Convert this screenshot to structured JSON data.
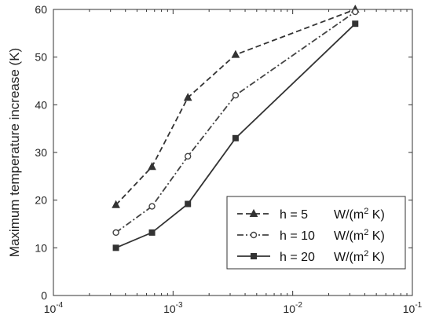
{
  "chart_data": {
    "type": "line",
    "title": "",
    "xlabel": "",
    "ylabel": "Maximum temperature increase (K)",
    "xscale": "log",
    "xlim": [
      0.0001,
      0.1
    ],
    "ylim": [
      0,
      60
    ],
    "grid": false,
    "legend_position": "bottom-right",
    "x_ticks": [
      {
        "value": 0.0001,
        "base": "10",
        "exp": "-4"
      },
      {
        "value": 0.001,
        "base": "10",
        "exp": "-3"
      },
      {
        "value": 0.01,
        "base": "10",
        "exp": "-2"
      },
      {
        "value": 0.1,
        "base": "10",
        "exp": "-1"
      }
    ],
    "y_ticks": [
      0,
      10,
      20,
      30,
      40,
      50,
      60
    ],
    "x": [
      0.000333,
      0.000667,
      0.00133,
      0.00333,
      0.0333
    ],
    "series": [
      {
        "label_main": "h = 5",
        "label_unit": "W/(m",
        "label_sup": "2",
        "label_end": " K)",
        "values": [
          19,
          27,
          41.5,
          50.5,
          60
        ],
        "marker": "triangle",
        "dash": "dashed",
        "color": "#333333"
      },
      {
        "label_main": "h = 10",
        "label_unit": "W/(m",
        "label_sup": "2",
        "label_end": " K)",
        "values": [
          13.2,
          18.7,
          29.2,
          42,
          59.5
        ],
        "marker": "circle",
        "dash": "dashdot",
        "color": "#444444"
      },
      {
        "label_main": "h = 20",
        "label_unit": "W/(m",
        "label_sup": "2",
        "label_end": " K)",
        "values": [
          10,
          13.2,
          19.2,
          33,
          57
        ],
        "marker": "square",
        "dash": "solid",
        "color": "#333333"
      }
    ]
  }
}
